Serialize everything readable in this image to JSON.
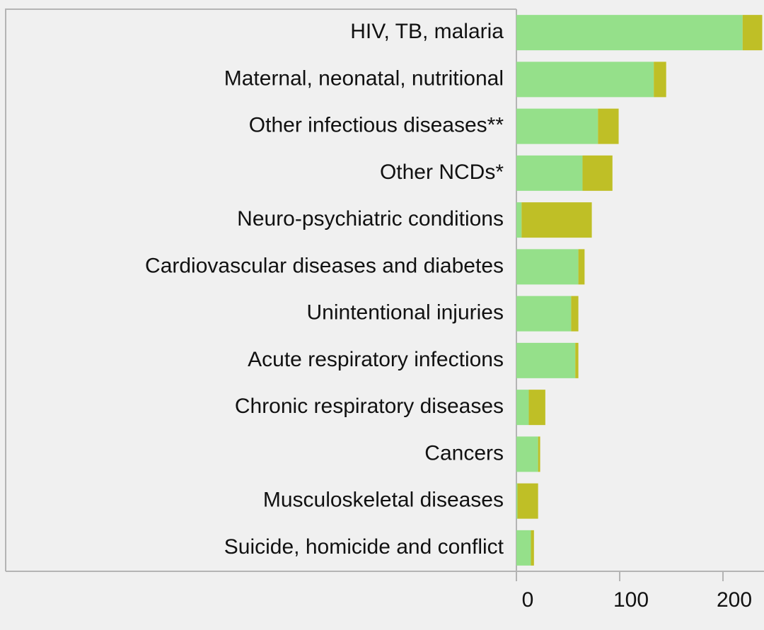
{
  "chart_data": {
    "type": "stacked_barh",
    "categories": [
      "HIV, TB, malaria",
      "Maternal, neonatal, nutritional",
      "Other infectious diseases**",
      "Other NCDs*",
      "Neuro-psychiatric conditions",
      "Cardiovascular diseases and diabetes",
      "Unintentional injuries",
      "Acute respiratory infections",
      "Chronic respiratory diseases",
      "Cancers",
      "Musculoskeletal diseases",
      "Suicide, homicide and conflict"
    ],
    "series": [
      {
        "color": "#95e08a",
        "values": [
          219,
          133,
          79,
          64,
          5,
          60,
          53,
          57,
          12,
          21,
          1,
          14
        ]
      },
      {
        "color": "#bfbf26",
        "values": [
          19,
          12,
          20,
          29,
          68,
          6,
          7,
          3,
          16,
          2,
          20,
          3
        ]
      }
    ],
    "xlim": [
      0,
      240
    ],
    "xticks": [
      0,
      100,
      200
    ]
  }
}
